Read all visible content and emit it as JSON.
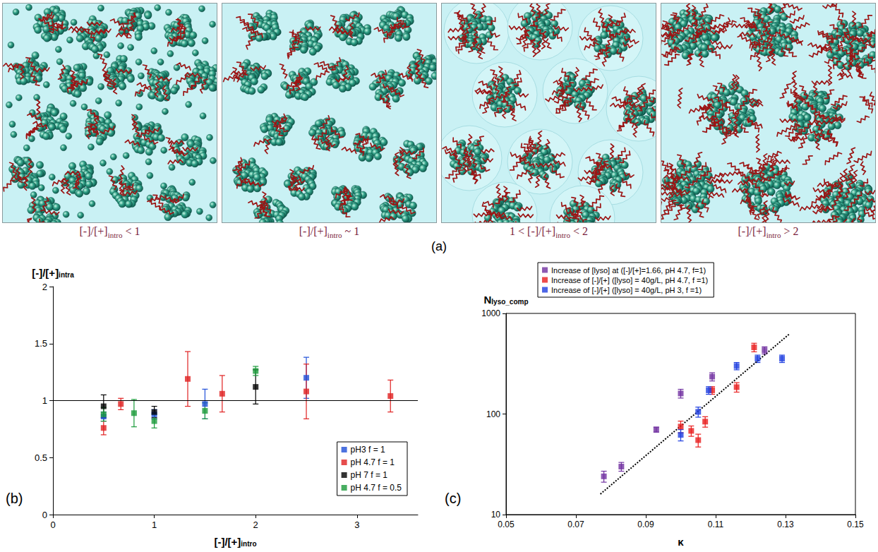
{
  "diagram": {
    "letter": "(a)",
    "panels": [
      {
        "label": {
          "text": "[-]/[+]",
          "subscript": "intro",
          "suffix": " < 1"
        }
      },
      {
        "label": {
          "text": "[-]/[+]",
          "subscript": "intro",
          "suffix": " ~ 1"
        }
      },
      {
        "label": {
          "prefix": "1 < ",
          "text": "[-]/[+]",
          "subscript": "intro",
          "suffix": " < 2"
        }
      },
      {
        "label": {
          "text": "[-]/[+]",
          "subscript": "intro",
          "suffix": " > 2"
        }
      }
    ]
  },
  "chart_data": [
    {
      "letter": "(b)",
      "type": "scatter",
      "y_label": {
        "text": "[-]/[+]",
        "subscript": "intra"
      },
      "x_label": {
        "text": "[-]/[+]",
        "subscript": "intro"
      },
      "xlim": [
        0,
        3.6
      ],
      "xticks": [
        0,
        1,
        2,
        3
      ],
      "ylim": [
        0,
        2
      ],
      "yticks": [
        0,
        0.5,
        1,
        1.5,
        2
      ],
      "reference_y": 1,
      "grid": false,
      "legend": "lower right",
      "marker": "square",
      "series": [
        {
          "name": "pH3 f = 1",
          "color": "#1f4fd8",
          "x": [
            0.5,
            1.0,
            1.5,
            2.5
          ],
          "values": [
            0.86,
            0.88,
            0.97,
            1.2
          ],
          "errors": [
            0.04,
            0.04,
            0.13,
            0.18
          ]
        },
        {
          "name": "pH 4.7 f = 1",
          "color": "#e02020",
          "x": [
            0.5,
            0.67,
            1.33,
            1.67,
            2.5,
            3.33
          ],
          "values": [
            0.76,
            0.97,
            1.19,
            1.06,
            1.08,
            1.04
          ],
          "errors": [
            0.06,
            0.05,
            0.24,
            0.16,
            0.24,
            0.14
          ]
        },
        {
          "name": "pH 7 f = 1",
          "color": "#000000",
          "x": [
            0.5,
            1.0,
            2.0
          ],
          "values": [
            0.95,
            0.9,
            1.12
          ],
          "errors": [
            0.1,
            0.05,
            0.15
          ]
        },
        {
          "name": "pH 4.7 f = 0.5",
          "color": "#1a9a3a",
          "x": [
            0.5,
            0.8,
            1.0,
            1.5,
            2.0
          ],
          "values": [
            0.88,
            0.89,
            0.82,
            0.91,
            1.26
          ],
          "errors": [
            0.06,
            0.12,
            0.06,
            0.07,
            0.04
          ]
        }
      ]
    },
    {
      "letter": "(c)",
      "type": "scatter",
      "log": "y",
      "y_label": {
        "text": "N",
        "subscript": "lyso_comp"
      },
      "x_label": {
        "text": "κ"
      },
      "xlim": [
        0.05,
        0.15
      ],
      "xticks": [
        0.05,
        0.07,
        0.09,
        0.11,
        0.13,
        0.15
      ],
      "ylim": [
        10,
        1000
      ],
      "yticks": [
        10,
        100,
        1000
      ],
      "grid": false,
      "legend": "top",
      "marker": "square",
      "series": [
        {
          "name": "Increase of [lyso] at ([-]/[+]=1.66, pH 4.7, f=1)",
          "color": "#7030a0",
          "x": [
            0.078,
            0.083,
            0.093,
            0.1,
            0.109,
            0.124
          ],
          "values": [
            24,
            30,
            70,
            160,
            235,
            430
          ],
          "errors": [
            3,
            3,
            4,
            16,
            22,
            35
          ]
        },
        {
          "name": "Increase of [-]/[+] ([lyso] = 40g/L, pH 4.7, f =1)",
          "color": "#e81e1e",
          "x": [
            0.1,
            0.103,
            0.105,
            0.107,
            0.109,
            0.116,
            0.121
          ],
          "values": [
            75,
            68,
            55,
            84,
            172,
            185,
            460
          ],
          "errors": [
            10,
            8,
            8,
            10,
            15,
            20,
            45
          ]
        },
        {
          "name": "Increase of [-]/[+] ([lyso] = 40g/L, pH 3, f =1)",
          "color": "#1f3fe0",
          "x": [
            0.1,
            0.105,
            0.108,
            0.116,
            0.122,
            0.129
          ],
          "values": [
            62,
            105,
            172,
            300,
            355,
            355
          ],
          "errors": [
            8,
            12,
            15,
            25,
            30,
            30
          ]
        }
      ],
      "trend_line": {
        "x": [
          0.077,
          0.131
        ],
        "values": [
          16,
          620
        ],
        "color": "#000000",
        "line_style": "dotted"
      }
    }
  ]
}
